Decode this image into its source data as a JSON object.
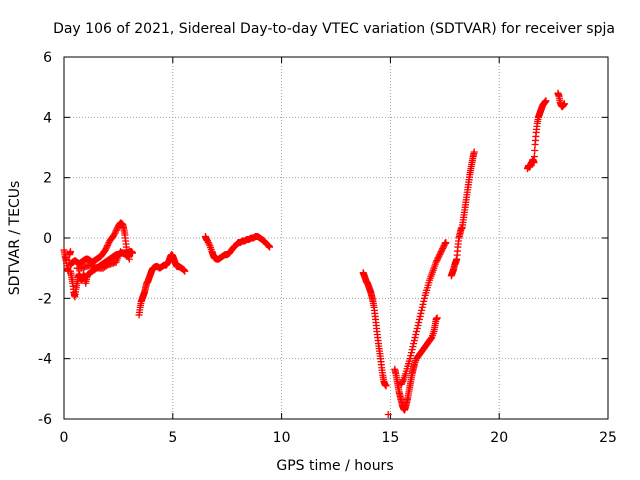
{
  "chart_data": {
    "type": "scatter",
    "title": "Day 106 of 2021, Sidereal Day-to-day VTEC variation (SDTVAR) for receiver spja",
    "xlabel": "GPS time / hours",
    "ylabel": "SDTVAR / TECUs",
    "xlim": [
      0,
      25
    ],
    "ylim": [
      -6,
      6
    ],
    "xticks": [
      0,
      5,
      10,
      15,
      20,
      25
    ],
    "yticks": [
      -6,
      -4,
      -2,
      0,
      2,
      4,
      6
    ],
    "grid": true,
    "marker": "+",
    "marker_color": "#ff0000",
    "series": [
      {
        "name": "SDTVAR",
        "segments": [
          [
            [
              0.0,
              -0.4
            ],
            [
              0.05,
              -0.6
            ],
            [
              0.1,
              -0.75
            ],
            [
              0.15,
              -1.0
            ],
            [
              0.2,
              -1.1
            ],
            [
              0.25,
              -0.55
            ],
            [
              0.3,
              -0.45
            ]
          ],
          [
            [
              0.3,
              -1.1
            ],
            [
              0.35,
              -1.3
            ],
            [
              0.4,
              -1.5
            ],
            [
              0.45,
              -1.8
            ],
            [
              0.5,
              -1.95
            ],
            [
              0.55,
              -1.7
            ],
            [
              0.6,
              -1.5
            ],
            [
              0.65,
              -1.3
            ],
            [
              0.7,
              -1.2
            ],
            [
              0.75,
              -1.3
            ],
            [
              0.8,
              -1.4
            ],
            [
              0.85,
              -1.35
            ],
            [
              0.9,
              -1.2
            ],
            [
              0.95,
              -1.3
            ],
            [
              1.0,
              -1.5
            ],
            [
              1.05,
              -1.3
            ],
            [
              1.1,
              -1.2
            ],
            [
              1.2,
              -1.15
            ],
            [
              1.3,
              -1.1
            ],
            [
              1.4,
              -1.05
            ],
            [
              1.5,
              -1.0
            ],
            [
              1.6,
              -0.95
            ],
            [
              1.7,
              -0.9
            ],
            [
              1.8,
              -0.85
            ],
            [
              1.9,
              -0.8
            ],
            [
              2.0,
              -0.75
            ],
            [
              2.1,
              -0.7
            ],
            [
              2.2,
              -0.65
            ],
            [
              2.3,
              -0.6
            ],
            [
              2.4,
              -0.55
            ],
            [
              2.5,
              -0.55
            ],
            [
              2.6,
              -0.5
            ],
            [
              2.7,
              -0.5
            ],
            [
              2.8,
              -0.5
            ],
            [
              2.9,
              -0.5
            ],
            [
              3.0,
              -0.45
            ],
            [
              3.1,
              -0.45
            ],
            [
              3.15,
              -0.5
            ]
          ],
          [
            [
              0.3,
              -0.9
            ],
            [
              0.4,
              -0.8
            ],
            [
              0.5,
              -0.75
            ],
            [
              0.6,
              -0.8
            ],
            [
              0.7,
              -0.85
            ],
            [
              0.8,
              -0.8
            ],
            [
              0.9,
              -0.75
            ],
            [
              1.0,
              -0.7
            ],
            [
              1.1,
              -0.7
            ],
            [
              1.2,
              -0.75
            ],
            [
              1.3,
              -0.8
            ],
            [
              1.4,
              -0.75
            ],
            [
              1.5,
              -0.7
            ],
            [
              1.6,
              -0.65
            ],
            [
              1.7,
              -0.6
            ],
            [
              1.8,
              -0.5
            ],
            [
              1.9,
              -0.4
            ],
            [
              2.0,
              -0.25
            ],
            [
              2.1,
              -0.1
            ],
            [
              2.2,
              0.0
            ],
            [
              2.3,
              0.1
            ],
            [
              2.4,
              0.25
            ],
            [
              2.5,
              0.4
            ],
            [
              2.6,
              0.5
            ],
            [
              2.7,
              0.45
            ],
            [
              2.75,
              0.3
            ],
            [
              2.8,
              0.1
            ],
            [
              2.85,
              -0.2
            ],
            [
              2.9,
              -0.5
            ],
            [
              3.0,
              -0.7
            ]
          ],
          [
            [
              0.6,
              -1.0
            ],
            [
              0.8,
              -1.0
            ],
            [
              1.0,
              -0.95
            ],
            [
              1.2,
              -0.9
            ],
            [
              1.4,
              -0.95
            ],
            [
              1.6,
              -1.0
            ],
            [
              1.8,
              -1.0
            ],
            [
              2.0,
              -0.9
            ],
            [
              2.2,
              -0.85
            ],
            [
              2.4,
              -0.8
            ],
            [
              2.5,
              -0.6
            ],
            [
              2.6,
              -0.45
            ],
            [
              2.8,
              -0.55
            ],
            [
              3.0,
              -0.6
            ]
          ],
          [
            [
              3.45,
              -2.55
            ],
            [
              3.5,
              -2.3
            ],
            [
              3.55,
              -2.1
            ],
            [
              3.6,
              -2.0
            ],
            [
              3.65,
              -1.9
            ],
            [
              3.7,
              -1.8
            ],
            [
              3.75,
              -1.65
            ],
            [
              3.8,
              -1.5
            ],
            [
              3.85,
              -1.45
            ],
            [
              3.9,
              -1.35
            ],
            [
              3.95,
              -1.25
            ],
            [
              4.0,
              -1.15
            ],
            [
              4.05,
              -1.05
            ],
            [
              4.1,
              -1.0
            ],
            [
              4.2,
              -0.95
            ],
            [
              4.3,
              -0.95
            ],
            [
              4.4,
              -1.0
            ],
            [
              4.5,
              -0.95
            ],
            [
              4.6,
              -0.9
            ],
            [
              4.7,
              -0.9
            ],
            [
              4.8,
              -0.8
            ],
            [
              4.85,
              -0.7
            ],
            [
              4.9,
              -0.6
            ],
            [
              4.95,
              -0.55
            ],
            [
              5.0,
              -0.6
            ],
            [
              5.05,
              -0.7
            ],
            [
              5.1,
              -0.8
            ],
            [
              5.15,
              -0.9
            ],
            [
              5.2,
              -0.95
            ],
            [
              5.3,
              -0.95
            ],
            [
              5.4,
              -1.0
            ],
            [
              5.5,
              -1.05
            ],
            [
              5.55,
              -1.1
            ]
          ],
          [
            [
              6.5,
              0.05
            ],
            [
              6.55,
              -0.05
            ],
            [
              6.6,
              -0.1
            ],
            [
              6.7,
              -0.25
            ],
            [
              6.8,
              -0.45
            ],
            [
              6.85,
              -0.55
            ],
            [
              6.9,
              -0.65
            ],
            [
              7.0,
              -0.7
            ],
            [
              7.1,
              -0.7
            ],
            [
              7.2,
              -0.65
            ],
            [
              7.3,
              -0.6
            ],
            [
              7.4,
              -0.55
            ],
            [
              7.5,
              -0.55
            ],
            [
              7.6,
              -0.5
            ],
            [
              7.7,
              -0.4
            ],
            [
              7.8,
              -0.3
            ],
            [
              7.9,
              -0.25
            ],
            [
              8.0,
              -0.15
            ],
            [
              8.1,
              -0.15
            ],
            [
              8.2,
              -0.1
            ],
            [
              8.3,
              -0.1
            ],
            [
              8.4,
              -0.05
            ],
            [
              8.5,
              -0.05
            ],
            [
              8.6,
              0.0
            ],
            [
              8.7,
              0.0
            ],
            [
              8.8,
              0.05
            ],
            [
              8.9,
              0.05
            ],
            [
              9.0,
              0.0
            ],
            [
              9.1,
              -0.05
            ],
            [
              9.2,
              -0.1
            ],
            [
              9.3,
              -0.2
            ],
            [
              9.4,
              -0.25
            ],
            [
              9.45,
              -0.3
            ]
          ],
          [
            [
              13.75,
              -1.15
            ],
            [
              13.8,
              -1.25
            ],
            [
              13.85,
              -1.35
            ],
            [
              13.9,
              -1.45
            ],
            [
              13.95,
              -1.5
            ],
            [
              14.0,
              -1.6
            ],
            [
              14.05,
              -1.7
            ],
            [
              14.1,
              -1.8
            ],
            [
              14.15,
              -1.95
            ],
            [
              14.2,
              -2.1
            ],
            [
              14.25,
              -2.3
            ],
            [
              14.3,
              -2.6
            ],
            [
              14.35,
              -2.9
            ],
            [
              14.4,
              -3.2
            ],
            [
              14.45,
              -3.5
            ],
            [
              14.5,
              -3.75
            ],
            [
              14.55,
              -4.0
            ],
            [
              14.6,
              -4.3
            ],
            [
              14.65,
              -4.55
            ],
            [
              14.7,
              -4.75
            ],
            [
              14.75,
              -4.85
            ],
            [
              14.8,
              -4.9
            ]
          ],
          [
            [
              14.9,
              -5.85
            ]
          ],
          [
            [
              15.2,
              -4.35
            ],
            [
              15.25,
              -4.5
            ],
            [
              15.3,
              -4.7
            ],
            [
              15.35,
              -4.9
            ],
            [
              15.4,
              -5.1
            ],
            [
              15.45,
              -5.25
            ],
            [
              15.5,
              -5.4
            ],
            [
              15.55,
              -5.55
            ],
            [
              15.6,
              -5.65
            ],
            [
              15.65,
              -5.7
            ],
            [
              15.7,
              -5.6
            ],
            [
              15.75,
              -5.45
            ],
            [
              15.8,
              -5.3
            ],
            [
              15.85,
              -5.1
            ],
            [
              15.9,
              -4.9
            ],
            [
              15.95,
              -4.7
            ],
            [
              16.0,
              -4.5
            ],
            [
              16.05,
              -4.35
            ],
            [
              16.1,
              -4.2
            ],
            [
              16.2,
              -4.0
            ],
            [
              16.3,
              -3.9
            ],
            [
              16.4,
              -3.8
            ],
            [
              16.5,
              -3.7
            ],
            [
              16.6,
              -3.6
            ],
            [
              16.7,
              -3.5
            ],
            [
              16.8,
              -3.4
            ],
            [
              16.9,
              -3.3
            ],
            [
              17.0,
              -3.1
            ],
            [
              17.05,
              -2.9
            ],
            [
              17.1,
              -2.7
            ],
            [
              17.15,
              -2.65
            ]
          ],
          [
            [
              15.5,
              -4.85
            ],
            [
              15.6,
              -4.7
            ],
            [
              15.7,
              -4.5
            ],
            [
              15.8,
              -4.25
            ],
            [
              15.9,
              -4.0
            ],
            [
              16.0,
              -3.7
            ],
            [
              16.1,
              -3.4
            ],
            [
              16.2,
              -3.1
            ],
            [
              16.3,
              -2.8
            ],
            [
              16.4,
              -2.5
            ],
            [
              16.5,
              -2.2
            ],
            [
              16.6,
              -1.9
            ],
            [
              16.7,
              -1.65
            ],
            [
              16.8,
              -1.4
            ],
            [
              16.9,
              -1.2
            ],
            [
              17.0,
              -1.0
            ],
            [
              17.1,
              -0.8
            ],
            [
              17.2,
              -0.65
            ],
            [
              17.3,
              -0.5
            ],
            [
              17.4,
              -0.35
            ],
            [
              17.5,
              -0.2
            ],
            [
              17.55,
              -0.15
            ]
          ],
          [
            [
              17.8,
              -1.25
            ],
            [
              17.85,
              -1.15
            ],
            [
              17.9,
              -1.05
            ],
            [
              17.95,
              -0.9
            ],
            [
              18.0,
              -0.8
            ],
            [
              18.05,
              -0.7
            ],
            [
              18.1,
              -0.3
            ],
            [
              18.15,
              0.0
            ],
            [
              18.2,
              0.15
            ],
            [
              18.25,
              0.3
            ],
            [
              18.3,
              0.35
            ],
            [
              18.35,
              0.6
            ],
            [
              18.4,
              0.85
            ],
            [
              18.45,
              1.1
            ],
            [
              18.5,
              1.35
            ],
            [
              18.55,
              1.6
            ],
            [
              18.6,
              1.85
            ],
            [
              18.65,
              2.1
            ],
            [
              18.7,
              2.3
            ],
            [
              18.75,
              2.5
            ],
            [
              18.8,
              2.7
            ],
            [
              18.85,
              2.85
            ]
          ],
          [
            [
              21.3,
              2.3
            ],
            [
              21.35,
              2.4
            ],
            [
              21.4,
              2.35
            ],
            [
              21.45,
              2.45
            ],
            [
              21.5,
              2.5
            ],
            [
              21.55,
              2.6
            ],
            [
              21.6,
              2.5
            ],
            [
              21.65,
              3.1
            ],
            [
              21.7,
              3.5
            ],
            [
              21.75,
              3.8
            ],
            [
              21.8,
              4.0
            ],
            [
              21.85,
              4.1
            ],
            [
              21.9,
              4.2
            ],
            [
              21.95,
              4.3
            ],
            [
              22.0,
              4.4
            ],
            [
              22.05,
              4.45
            ],
            [
              22.1,
              4.5
            ],
            [
              22.15,
              4.55
            ]
          ],
          [
            [
              22.7,
              4.8
            ],
            [
              22.75,
              4.7
            ],
            [
              22.8,
              4.5
            ],
            [
              22.85,
              4.4
            ],
            [
              22.9,
              4.35
            ],
            [
              22.95,
              4.4
            ],
            [
              23.0,
              4.45
            ]
          ]
        ]
      }
    ]
  }
}
